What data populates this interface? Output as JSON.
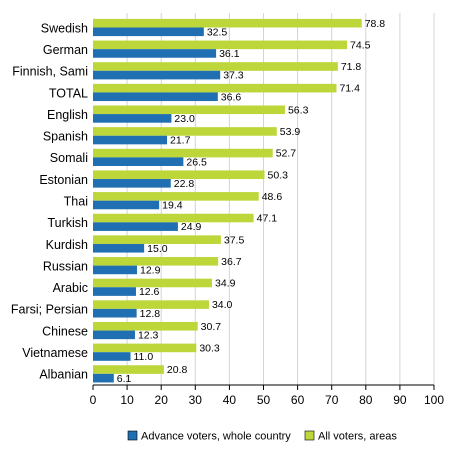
{
  "chart_data": {
    "type": "bar",
    "orientation": "horizontal",
    "categories": [
      "Swedish",
      "German",
      "Finnish, Sami",
      "TOTAL",
      "English",
      "Spanish",
      "Somali",
      "Estonian",
      "Thai",
      "Turkish",
      "Kurdish",
      "Russian",
      "Arabic",
      "Farsi; Persian",
      "Chinese",
      "Vietnamese",
      "Albanian"
    ],
    "series": [
      {
        "name": "Advance voters, whole country",
        "color": "#1f6fb2",
        "values": [
          32.5,
          36.1,
          37.3,
          36.6,
          23.0,
          21.7,
          26.5,
          22.8,
          19.4,
          24.9,
          15.0,
          12.9,
          12.6,
          12.8,
          12.3,
          11.0,
          6.1
        ]
      },
      {
        "name": "All voters, areas",
        "color": "#bdd63a",
        "values": [
          78.8,
          74.5,
          71.8,
          71.4,
          56.3,
          53.9,
          52.7,
          50.3,
          48.6,
          47.1,
          37.5,
          36.7,
          34.9,
          34.0,
          30.7,
          30.3,
          20.8
        ]
      }
    ],
    "xlim": [
      0,
      100
    ],
    "xticks": [
      0,
      10,
      20,
      30,
      40,
      50,
      60,
      70,
      80,
      90,
      100
    ],
    "grid": "vertical",
    "legend_position": "bottom",
    "title": "",
    "xlabel": "",
    "ylabel": ""
  }
}
